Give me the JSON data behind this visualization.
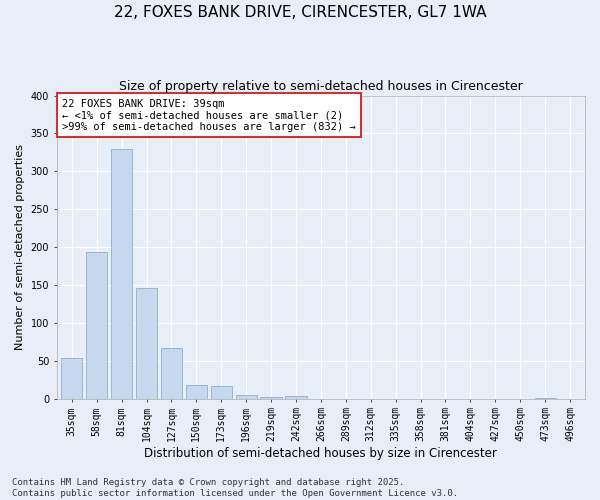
{
  "title": "22, FOXES BANK DRIVE, CIRENCESTER, GL7 1WA",
  "subtitle": "Size of property relative to semi-detached houses in Cirencester",
  "xlabel": "Distribution of semi-detached houses by size in Cirencester",
  "ylabel": "Number of semi-detached properties",
  "bin_labels": [
    "35sqm",
    "58sqm",
    "81sqm",
    "104sqm",
    "127sqm",
    "150sqm",
    "173sqm",
    "196sqm",
    "219sqm",
    "242sqm",
    "266sqm",
    "289sqm",
    "312sqm",
    "335sqm",
    "358sqm",
    "381sqm",
    "404sqm",
    "427sqm",
    "450sqm",
    "473sqm",
    "496sqm"
  ],
  "bar_heights": [
    54,
    193,
    329,
    146,
    67,
    18,
    17,
    5,
    2,
    3,
    0,
    0,
    0,
    0,
    0,
    0,
    0,
    0,
    0,
    1,
    0
  ],
  "bar_color": "#c5d8ee",
  "bar_edge_color": "#8ab0d0",
  "annotation_text": "22 FOXES BANK DRIVE: 39sqm\n← <1% of semi-detached houses are smaller (2)\n>99% of semi-detached houses are larger (832) →",
  "annotation_box_color": "#ffffff",
  "annotation_box_edge": "#cc3333",
  "ylim": [
    0,
    400
  ],
  "yticks": [
    0,
    50,
    100,
    150,
    200,
    250,
    300,
    350,
    400
  ],
  "footer_text": "Contains HM Land Registry data © Crown copyright and database right 2025.\nContains public sector information licensed under the Open Government Licence v3.0.",
  "bg_color": "#e8eef7",
  "plot_bg_color": "#e8eef7",
  "grid_color": "#ffffff",
  "title_fontsize": 11,
  "subtitle_fontsize": 9,
  "xlabel_fontsize": 8.5,
  "ylabel_fontsize": 8,
  "tick_fontsize": 7,
  "footer_fontsize": 6.5,
  "annotation_fontsize": 7.5
}
